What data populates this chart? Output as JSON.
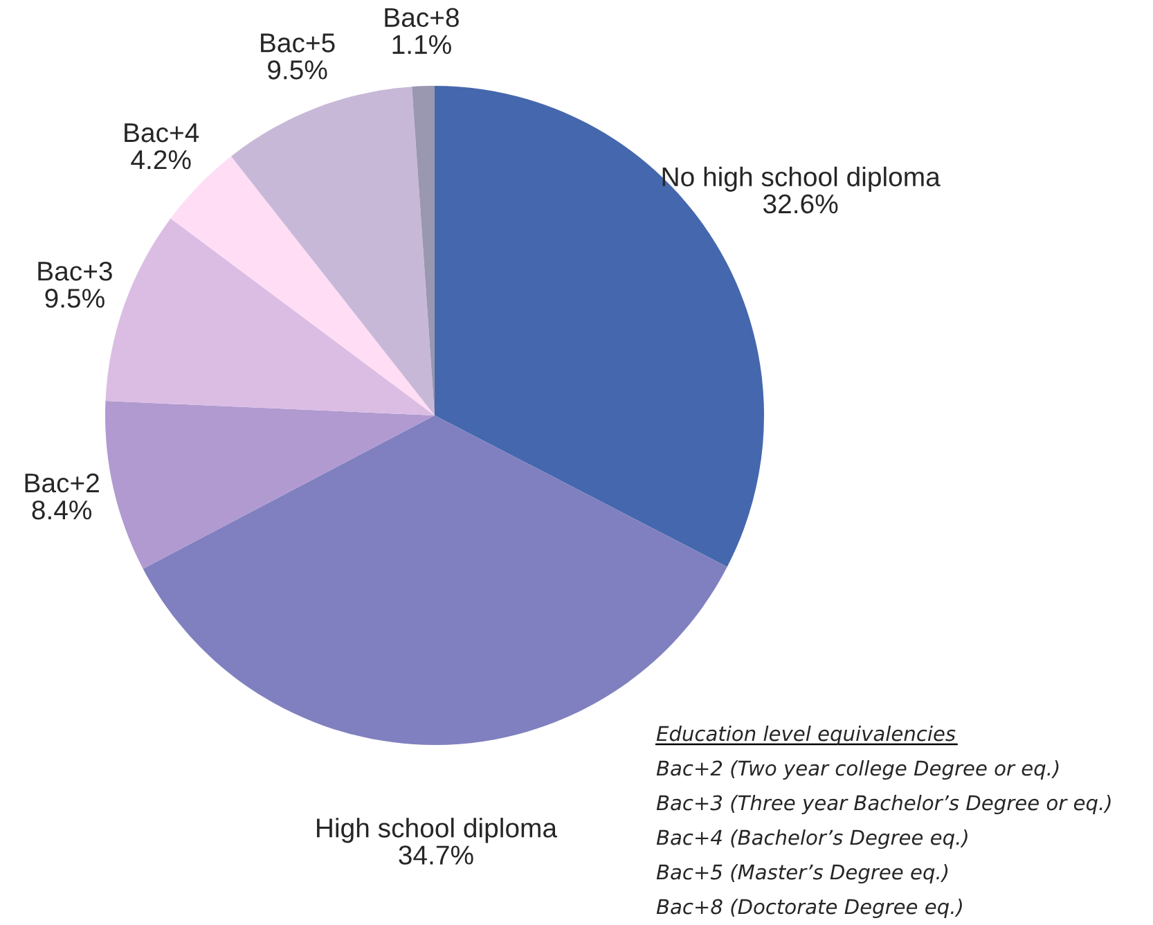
{
  "chart_data": {
    "type": "pie",
    "categories": [
      "No high school diploma",
      "High school diploma",
      "Bac+2",
      "Bac+3",
      "Bac+4",
      "Bac+5",
      "Bac+8"
    ],
    "values": [
      32.6,
      34.7,
      8.4,
      9.5,
      4.2,
      9.5,
      1.1
    ],
    "value_labels": [
      "32.6%",
      "34.7%",
      "8.4%",
      "9.5%",
      "4.2%",
      "9.5%",
      "1.1%"
    ],
    "colors": [
      "#4567ad",
      "#8080c0",
      "#b09ad0",
      "#dbbde4",
      "#ffddf5",
      "#c8b8d8",
      "#9a98b0"
    ],
    "annotations": [
      "Education level equivalencies",
      "Bac+2 (Two year college Degree or eq.)",
      "Bac+3 (Three year Bachelor’s Degree or eq.)",
      "Bac+4 (Bachelor’s Degree eq.)",
      "Bac+5 (Master’s Degree eq.)",
      "Bac+8 (Doctorate Degree eq.)"
    ],
    "legend": false
  }
}
